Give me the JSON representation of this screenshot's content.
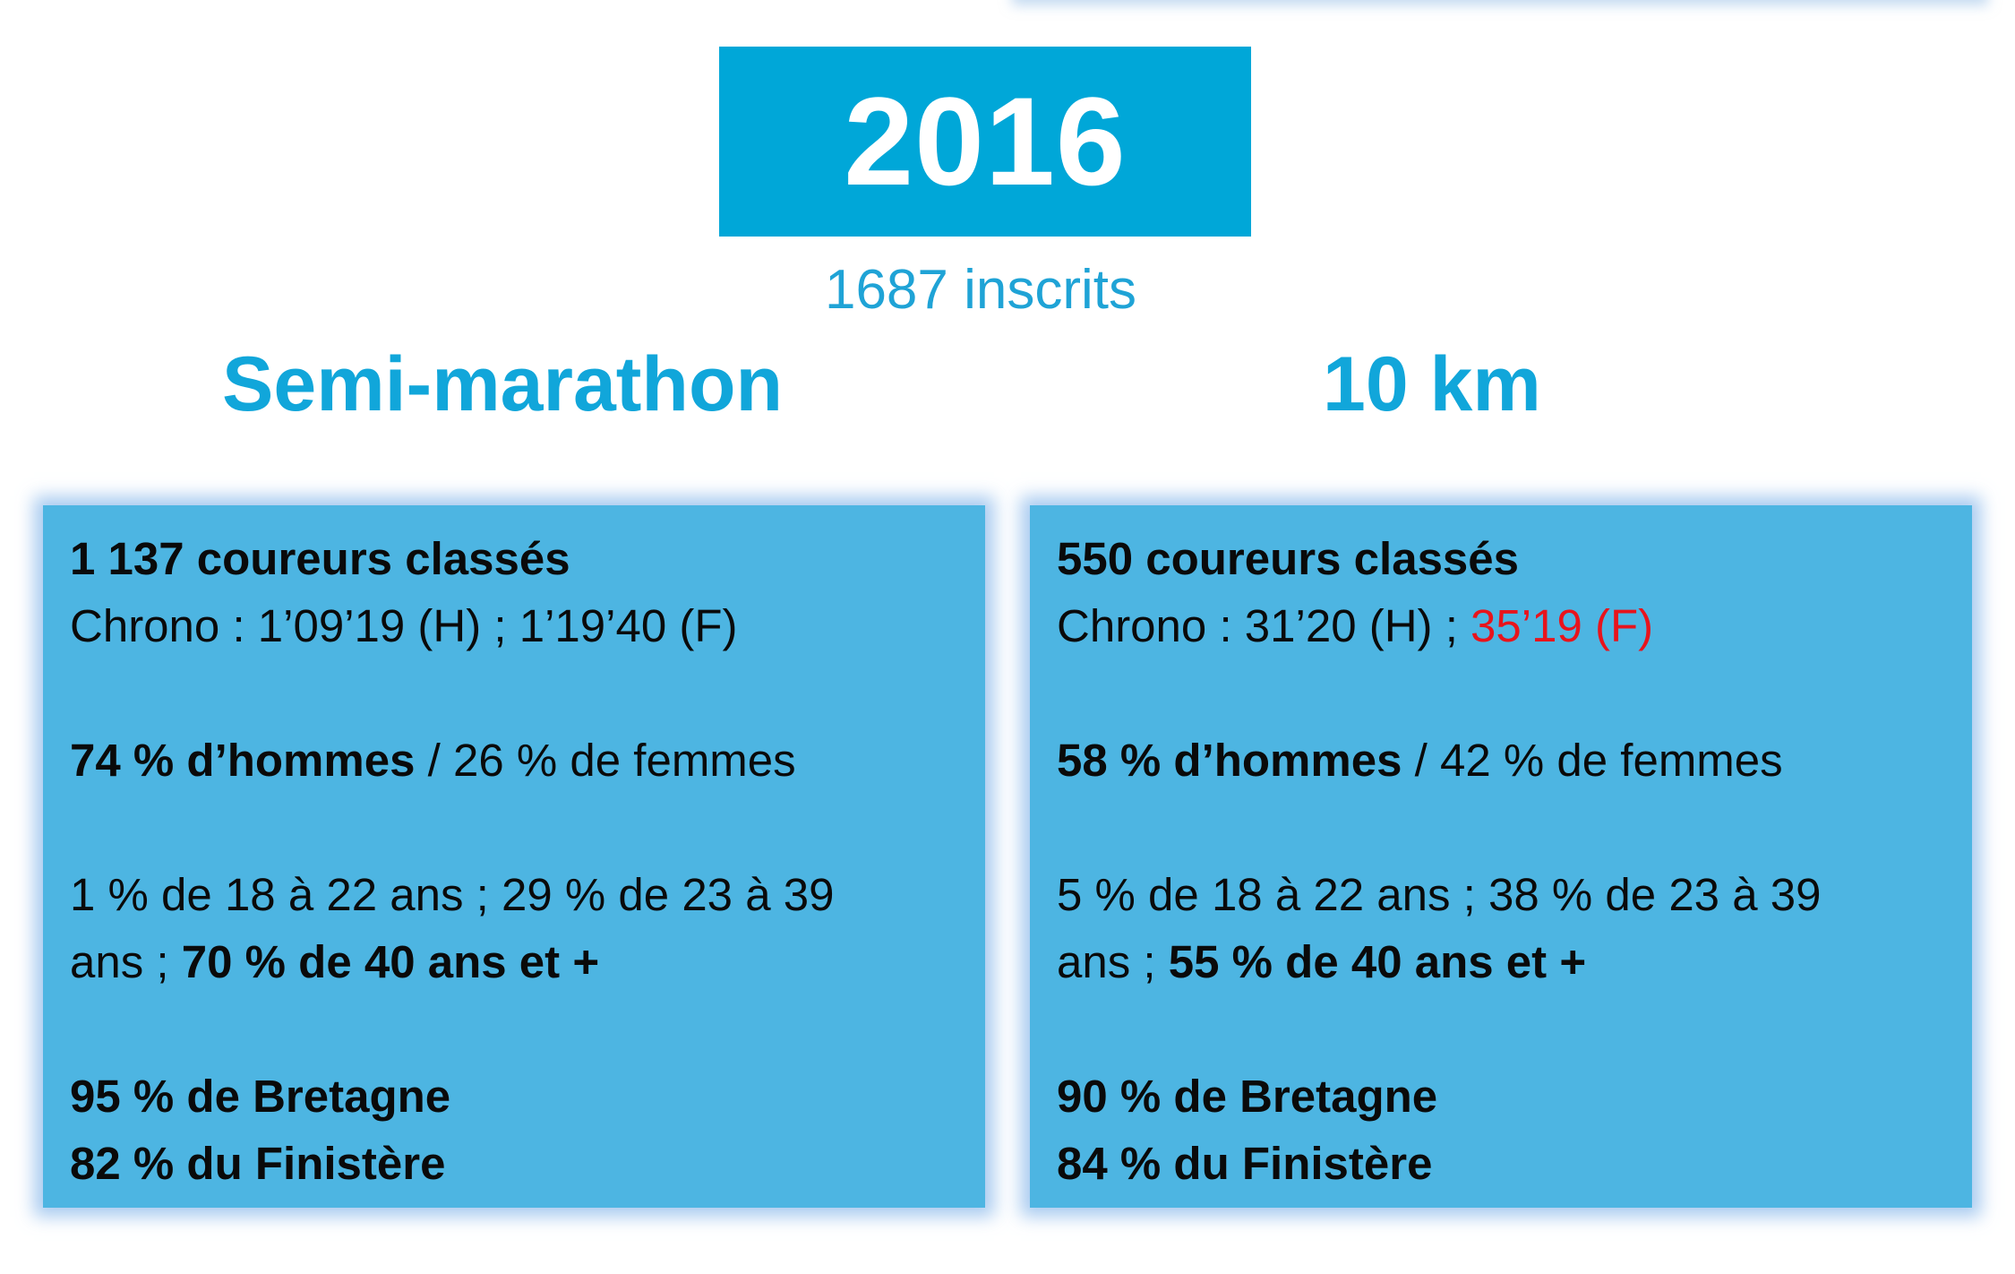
{
  "year": "2016",
  "registrations": "1687 inscrits",
  "races": [
    {
      "name": "Semi-marathon",
      "ranked": "1 137 coureurs classés",
      "chrono_prefix": "Chrono : 1’09’19 (H) ; ",
      "chrono_female": "1’19’40 (F)",
      "men": "74 % d’hommes",
      "women": " / 26 % de femmes",
      "ages_line1": "1 % de 18 à 22 ans ; 29 % de 23 à 39",
      "ages_line2_prefix": "ans ; ",
      "ages_line2_bold": "70 % de 40 ans et +",
      "bretagne": "95 % de Bretagne",
      "finistere": "82 % du Finistère"
    },
    {
      "name": "10 km",
      "ranked": "550 coureurs classés",
      "chrono_prefix": "Chrono : 31’20 (H) ; ",
      "chrono_female": "35’19 (F)",
      "men": "58 % d’hommes",
      "women": " / 42 % de femmes",
      "ages_line1": "5 % de 18 à 22 ans ; 38 % de 23 à 39",
      "ages_line2_prefix": "ans ; ",
      "ages_line2_bold": "55 % de 40 ans et +",
      "bretagne": "90 % de Bretagne",
      "finistere": "84 % du Finistère"
    }
  ],
  "colors": {
    "year_box": "#00a7d8",
    "heading": "#11a6da",
    "card": "#4db5e2",
    "highlight": "#e8141c"
  }
}
